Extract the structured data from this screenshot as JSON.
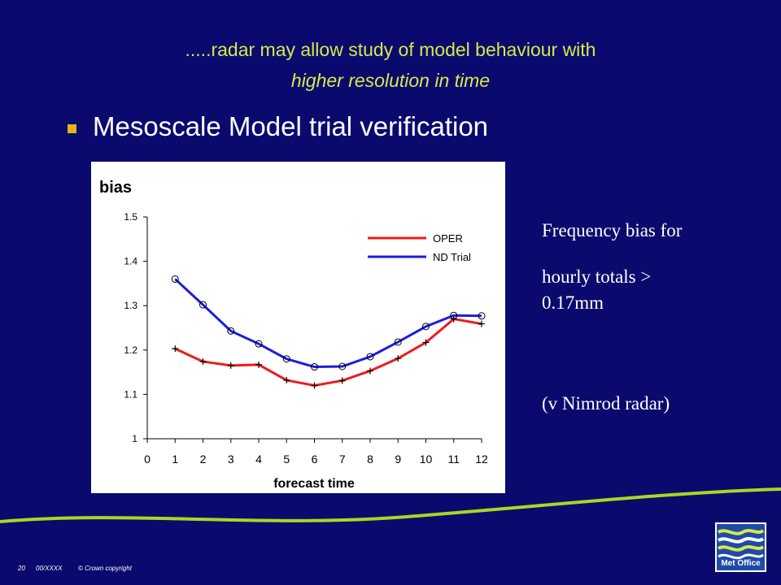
{
  "slide": {
    "title_line1": ".....radar may allow study of model behaviour with",
    "title_line2": "higher resolution in time",
    "bullet": "Mesoscale Model trial verification",
    "side_text": {
      "line1": "Frequency bias for",
      "line2": "hourly totals >",
      "line3": "0.17mm",
      "line4": "(v Nimrod radar)"
    },
    "footer": {
      "page": "20",
      "ref": "00/XXXX",
      "copyright": "© Crown copyright"
    },
    "logo_text": "Met Office"
  },
  "colors": {
    "background": "#0a0a6e",
    "title": "#d7e84a",
    "bullet": "#e3b51a",
    "oper": "#ee1c1c",
    "nd_trial": "#1c1cdd",
    "wave": "#a8d820"
  },
  "chart_data": {
    "type": "line",
    "title": "bias",
    "xlabel": "forecast time",
    "ylabel": "bias",
    "xlim": [
      0,
      12
    ],
    "ylim": [
      1,
      1.5
    ],
    "x_ticks": [
      "0",
      "1",
      "2",
      "3",
      "4",
      "5",
      "6",
      "7",
      "8",
      "9",
      "10",
      "11",
      "12"
    ],
    "y_ticks": [
      "1",
      "1.1",
      "1.2",
      "1.3",
      "1.4",
      "1.5"
    ],
    "grid": false,
    "legend_position": "top-right",
    "x": [
      1,
      2,
      3,
      4,
      5,
      6,
      7,
      8,
      9,
      10,
      11,
      12
    ],
    "series": [
      {
        "name": "OPER",
        "marker": "plus",
        "values": [
          1.203,
          1.174,
          1.165,
          1.167,
          1.132,
          1.12,
          1.131,
          1.153,
          1.181,
          1.217,
          1.27,
          1.259
        ]
      },
      {
        "name": "ND Trial",
        "marker": "circle",
        "values": [
          1.36,
          1.302,
          1.243,
          1.214,
          1.18,
          1.162,
          1.163,
          1.185,
          1.218,
          1.253,
          1.278,
          1.277
        ]
      }
    ]
  }
}
